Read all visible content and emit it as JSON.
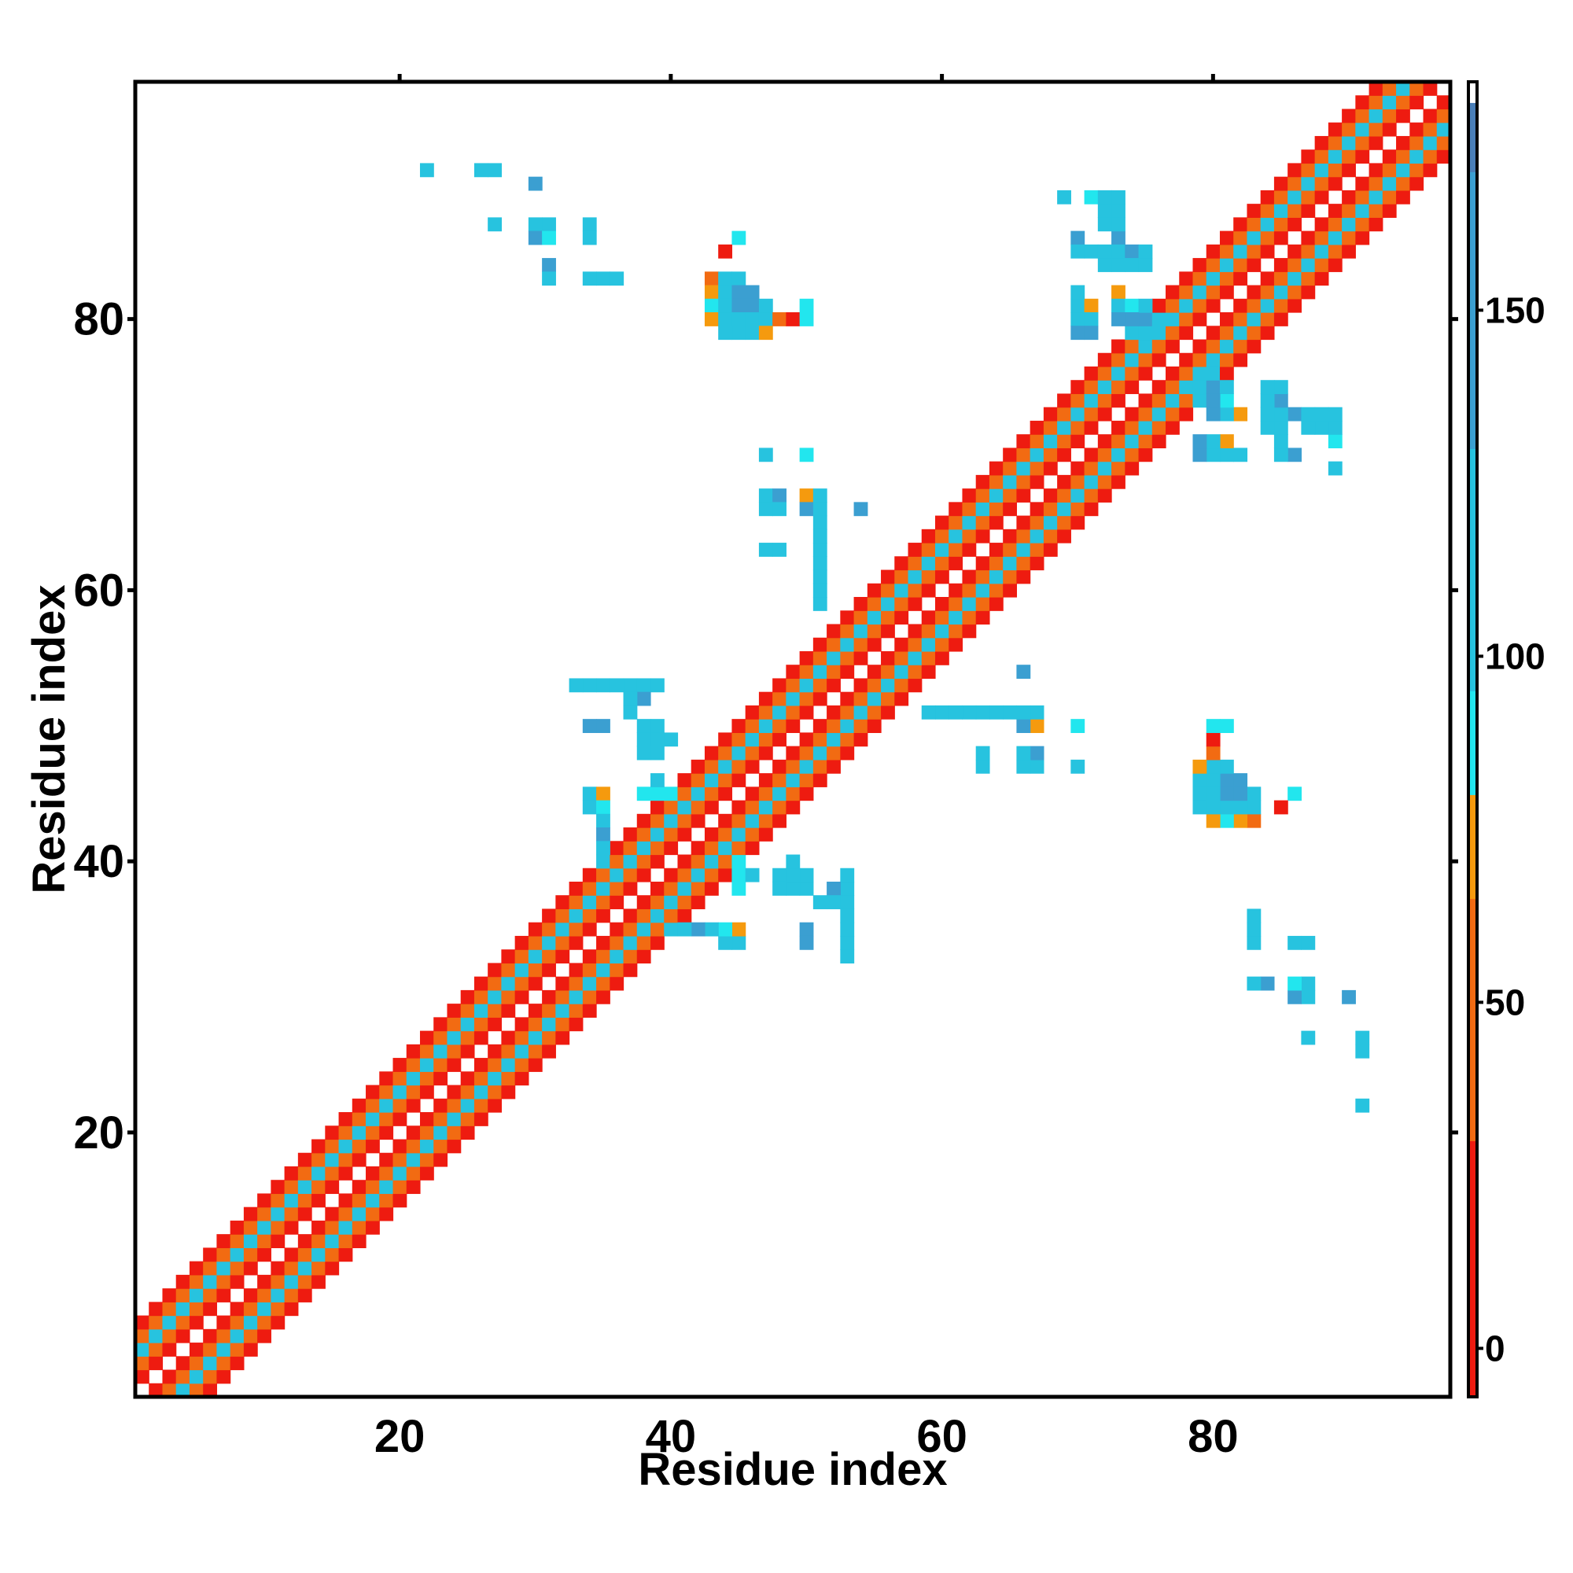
{
  "chart_data": {
    "type": "heatmap",
    "description_matrix": "symmetric residue-residue contact map",
    "xlabel": "Residue index",
    "ylabel": "Residue index",
    "xlim": [
      0.5,
      97.5
    ],
    "ylim": [
      0.5,
      97.5
    ],
    "x_ticks": [
      20,
      40,
      60,
      80
    ],
    "y_ticks": [
      20,
      40,
      60,
      80
    ],
    "x_tick_labels": [
      "20",
      "40",
      "60",
      "80"
    ],
    "y_tick_labels": [
      "20",
      "40",
      "60",
      "80"
    ],
    "colorbar": {
      "range": [
        -7,
        183
      ],
      "ticks": [
        0,
        50,
        100,
        150
      ],
      "tick_labels": [
        "0",
        "50",
        "100",
        "150"
      ],
      "bands": [
        {
          "from": -7,
          "to": 30,
          "color": "#ee1b10"
        },
        {
          "from": 30,
          "to": 65,
          "color": "#f26b12"
        },
        {
          "from": 65,
          "to": 80,
          "color": "#f59a0e"
        },
        {
          "from": 80,
          "to": 95,
          "color": "#22e6ee"
        },
        {
          "from": 95,
          "to": 130,
          "color": "#27c3df"
        },
        {
          "from": 130,
          "to": 170,
          "color": "#3b9fd1"
        },
        {
          "from": 170,
          "to": 180,
          "color": "#4a7fb8"
        },
        {
          "from": 180,
          "to": 183,
          "color": "#ffffff"
        }
      ]
    },
    "colors": {
      "red": "#ee1b10",
      "orange": "#f26b12",
      "amber": "#f59a0e",
      "cyan": "#22e6ee",
      "sky": "#27c3df",
      "blue": "#3b9fd1",
      "steel": "#4a7fb8"
    },
    "diagonal_band": {
      "residues": [
        1,
        97
      ],
      "offsets": [
        {
          "offset": 1,
          "value": 25
        },
        {
          "offset": 2,
          "value": 50
        },
        {
          "offset": 3,
          "value": 100
        },
        {
          "offset": 4,
          "value": 50
        },
        {
          "offset": 5,
          "value": 25
        }
      ]
    },
    "offdiagonal_cells": [
      {
        "i": 22,
        "j": 91,
        "v": 140
      },
      {
        "i": 26,
        "j": 91,
        "v": 120
      },
      {
        "i": 27,
        "j": 91,
        "v": 120
      },
      {
        "i": 30,
        "j": 90,
        "v": 140
      },
      {
        "i": 27,
        "j": 87,
        "v": 120
      },
      {
        "i": 30,
        "j": 87,
        "v": 120
      },
      {
        "i": 31,
        "j": 87,
        "v": 120
      },
      {
        "i": 34,
        "j": 87,
        "v": 120
      },
      {
        "i": 30,
        "j": 86,
        "v": 140
      },
      {
        "i": 31,
        "j": 86,
        "v": 100
      },
      {
        "i": 34,
        "j": 86,
        "v": 100
      },
      {
        "i": 31,
        "j": 84,
        "v": 150
      },
      {
        "i": 31,
        "j": 83,
        "v": 120
      },
      {
        "i": 34,
        "j": 83,
        "v": 100
      },
      {
        "i": 35,
        "j": 83,
        "v": 100
      },
      {
        "i": 36,
        "j": 83,
        "v": 100
      },
      {
        "i": 45,
        "j": 86,
        "v": 90
      },
      {
        "i": 44,
        "j": 85,
        "v": 10
      },
      {
        "i": 43,
        "j": 83,
        "v": 50
      },
      {
        "i": 44,
        "j": 83,
        "v": 100
      },
      {
        "i": 45,
        "j": 83,
        "v": 100
      },
      {
        "i": 43,
        "j": 82,
        "v": 75
      },
      {
        "i": 44,
        "j": 82,
        "v": 130
      },
      {
        "i": 45,
        "j": 82,
        "v": 140
      },
      {
        "i": 46,
        "j": 82,
        "v": 100
      },
      {
        "i": 43,
        "j": 81,
        "v": 75
      },
      {
        "i": 44,
        "j": 81,
        "v": 120
      },
      {
        "i": 45,
        "j": 81,
        "v": 150
      },
      {
        "i": 46,
        "j": 81,
        "v": 140
      },
      {
        "i": 47,
        "j": 81,
        "v": 100
      },
      {
        "i": 50,
        "j": 81,
        "v": 90
      },
      {
        "i": 43,
        "j": 80,
        "v": 90
      },
      {
        "i": 44,
        "j": 80,
        "v": 100
      },
      {
        "i": 45,
        "j": 80,
        "v": 140
      },
      {
        "i": 46,
        "j": 80,
        "v": 140
      },
      {
        "i": 47,
        "j": 80,
        "v": 100
      },
      {
        "i": 48,
        "j": 80,
        "v": 50
      },
      {
        "i": 49,
        "j": 80,
        "v": 10
      },
      {
        "i": 50,
        "j": 80,
        "v": 90
      },
      {
        "i": 45,
        "j": 79,
        "v": 100
      },
      {
        "i": 46,
        "j": 79,
        "v": 120
      },
      {
        "i": 47,
        "j": 79,
        "v": 75
      },
      {
        "i": 69,
        "j": 89,
        "v": 90
      },
      {
        "i": 71,
        "j": 89,
        "v": 90
      },
      {
        "i": 72,
        "j": 89,
        "v": 90
      },
      {
        "i": 72,
        "j": 88,
        "v": 120
      },
      {
        "i": 72,
        "j": 87,
        "v": 120
      },
      {
        "i": 70,
        "j": 86,
        "v": 150
      },
      {
        "i": 73,
        "j": 86,
        "v": 120
      },
      {
        "i": 70,
        "j": 85,
        "v": 120
      },
      {
        "i": 71,
        "j": 85,
        "v": 120
      },
      {
        "i": 72,
        "j": 85,
        "v": 100
      },
      {
        "i": 73,
        "j": 85,
        "v": 100
      },
      {
        "i": 74,
        "j": 85,
        "v": 120
      },
      {
        "i": 75,
        "j": 85,
        "v": 120
      },
      {
        "i": 72,
        "j": 84,
        "v": 120
      },
      {
        "i": 74,
        "j": 84,
        "v": 120
      },
      {
        "i": 73,
        "j": 82,
        "v": 75
      },
      {
        "i": 70,
        "j": 81,
        "v": 100
      },
      {
        "i": 71,
        "j": 81,
        "v": 90
      },
      {
        "i": 73,
        "j": 81,
        "v": 100
      },
      {
        "i": 74,
        "j": 81,
        "v": 90
      },
      {
        "i": 75,
        "j": 81,
        "v": 100
      },
      {
        "i": 70,
        "j": 80,
        "v": 120
      },
      {
        "i": 71,
        "j": 80,
        "v": 100
      },
      {
        "i": 73,
        "j": 80,
        "v": 140
      },
      {
        "i": 74,
        "j": 80,
        "v": 140
      },
      {
        "i": 75,
        "j": 80,
        "v": 150
      },
      {
        "i": 76,
        "j": 80,
        "v": 120
      },
      {
        "i": 70,
        "j": 79,
        "v": 140
      },
      {
        "i": 71,
        "j": 79,
        "v": 50
      },
      {
        "i": 74,
        "j": 79,
        "v": 120
      },
      {
        "i": 75,
        "j": 79,
        "v": 100
      },
      {
        "i": 84,
        "j": 75,
        "v": 120
      },
      {
        "i": 84,
        "j": 74,
        "v": 120
      },
      {
        "i": 85,
        "j": 74,
        "v": 140
      },
      {
        "i": 84,
        "j": 73,
        "v": 120
      },
      {
        "i": 85,
        "j": 73,
        "v": 120
      },
      {
        "i": 86,
        "j": 73,
        "v": 140
      },
      {
        "i": 87,
        "j": 73,
        "v": 120
      },
      {
        "i": 88,
        "j": 73,
        "v": 120
      },
      {
        "i": 89,
        "j": 73,
        "v": 120
      },
      {
        "i": 85,
        "j": 72,
        "v": 120
      },
      {
        "i": 89,
        "j": 72,
        "v": 100
      },
      {
        "i": 79,
        "j": 71,
        "v": 140
      },
      {
        "i": 80,
        "j": 71,
        "v": 120
      },
      {
        "i": 81,
        "j": 71,
        "v": 75
      },
      {
        "i": 79,
        "j": 70,
        "v": 140
      },
      {
        "i": 80,
        "j": 70,
        "v": 120
      },
      {
        "i": 81,
        "j": 70,
        "v": 100
      },
      {
        "i": 82,
        "j": 70,
        "v": 100
      },
      {
        "i": 85,
        "j": 70,
        "v": 120
      },
      {
        "i": 86,
        "j": 70,
        "v": 140
      },
      {
        "i": 89,
        "j": 69,
        "v": 100
      },
      {
        "i": 47,
        "j": 70,
        "v": 120
      },
      {
        "i": 50,
        "j": 70,
        "v": 120
      },
      {
        "i": 47,
        "j": 67,
        "v": 120
      },
      {
        "i": 48,
        "j": 67,
        "v": 120
      },
      {
        "i": 50,
        "j": 67,
        "v": 75
      },
      {
        "i": 51,
        "j": 67,
        "v": 120
      },
      {
        "i": 47,
        "j": 66,
        "v": 120
      },
      {
        "i": 48,
        "j": 66,
        "v": 100
      },
      {
        "i": 50,
        "j": 66,
        "v": 140
      },
      {
        "i": 51,
        "j": 66,
        "v": 120
      },
      {
        "i": 54,
        "j": 66,
        "v": 140
      },
      {
        "i": 51,
        "j": 65,
        "v": 120
      },
      {
        "i": 51,
        "j": 64,
        "v": 120
      },
      {
        "i": 47,
        "j": 63,
        "v": 120
      },
      {
        "i": 48,
        "j": 63,
        "v": 120
      },
      {
        "i": 51,
        "j": 63,
        "v": 120
      },
      {
        "i": 51,
        "j": 62,
        "v": 120
      },
      {
        "i": 51,
        "j": 61,
        "v": 100
      },
      {
        "i": 51,
        "j": 60,
        "v": 100
      },
      {
        "i": 51,
        "j": 59,
        "v": 120
      },
      {
        "i": 34,
        "j": 53,
        "v": 100
      },
      {
        "i": 35,
        "j": 53,
        "v": 100
      },
      {
        "i": 37,
        "j": 53,
        "v": 100
      },
      {
        "i": 38,
        "j": 53,
        "v": 100
      },
      {
        "i": 39,
        "j": 53,
        "v": 100
      },
      {
        "i": 38,
        "j": 52,
        "v": 140
      },
      {
        "i": 35,
        "j": 50,
        "v": 140
      },
      {
        "i": 38,
        "j": 50,
        "v": 140
      },
      {
        "i": 39,
        "j": 50,
        "v": 140
      },
      {
        "i": 38,
        "j": 49,
        "v": 120
      },
      {
        "i": 39,
        "j": 49,
        "v": 120
      },
      {
        "i": 40,
        "j": 49,
        "v": 120
      },
      {
        "i": 34,
        "j": 45,
        "v": 120
      },
      {
        "i": 35,
        "j": 45,
        "v": 75
      },
      {
        "i": 38,
        "j": 45,
        "v": 90
      },
      {
        "i": 39,
        "j": 45,
        "v": 90
      },
      {
        "i": 40,
        "j": 45,
        "v": 90
      },
      {
        "i": 39,
        "j": 46,
        "v": 100
      },
      {
        "i": 34,
        "j": 44,
        "v": 120
      },
      {
        "i": 35,
        "j": 44,
        "v": 90
      },
      {
        "i": 35,
        "j": 43,
        "v": 120
      },
      {
        "i": 35,
        "j": 42,
        "v": 140
      },
      {
        "i": 35,
        "j": 41,
        "v": 120
      },
      {
        "i": 35,
        "j": 40,
        "v": 120
      },
      {
        "i": 48,
        "j": 39,
        "v": 120
      },
      {
        "i": 50,
        "j": 39,
        "v": 100
      },
      {
        "i": 48,
        "j": 38,
        "v": 120
      },
      {
        "i": 49,
        "j": 38,
        "v": 100
      },
      {
        "i": 50,
        "j": 38,
        "v": 120
      },
      {
        "i": 52,
        "j": 38,
        "v": 140
      },
      {
        "i": 51,
        "j": 37,
        "v": 120
      },
      {
        "i": 52,
        "j": 37,
        "v": 120
      },
      {
        "i": 53,
        "j": 37,
        "v": 100
      },
      {
        "i": 53,
        "j": 36,
        "v": 100
      },
      {
        "i": 50,
        "j": 34,
        "v": 140
      },
      {
        "i": 53,
        "j": 34,
        "v": 120
      },
      {
        "i": 53,
        "j": 33,
        "v": 120
      },
      {
        "i": 59,
        "j": 51,
        "v": 100
      },
      {
        "i": 60,
        "j": 51,
        "v": 120
      },
      {
        "i": 61,
        "j": 51,
        "v": 120
      },
      {
        "i": 62,
        "j": 51,
        "v": 120
      },
      {
        "i": 63,
        "j": 51,
        "v": 120
      },
      {
        "i": 64,
        "j": 51,
        "v": 120
      },
      {
        "i": 65,
        "j": 51,
        "v": 120
      },
      {
        "i": 66,
        "j": 51,
        "v": 120
      },
      {
        "i": 67,
        "j": 51,
        "v": 120
      },
      {
        "i": 66,
        "j": 50,
        "v": 140
      },
      {
        "i": 67,
        "j": 50,
        "v": 75
      },
      {
        "i": 70,
        "j": 50,
        "v": 90
      },
      {
        "i": 66,
        "j": 54,
        "v": 140
      },
      {
        "i": 63,
        "j": 48,
        "v": 120
      },
      {
        "i": 66,
        "j": 48,
        "v": 120
      },
      {
        "i": 67,
        "j": 48,
        "v": 140
      },
      {
        "i": 63,
        "j": 47,
        "v": 120
      },
      {
        "i": 66,
        "j": 47,
        "v": 120
      },
      {
        "i": 67,
        "j": 47,
        "v": 120
      },
      {
        "i": 70,
        "j": 47,
        "v": 120
      },
      {
        "i": 80,
        "j": 50,
        "v": 90
      },
      {
        "i": 81,
        "j": 50,
        "v": 90
      },
      {
        "i": 80,
        "j": 49,
        "v": 10
      },
      {
        "i": 80,
        "j": 48,
        "v": 50
      },
      {
        "i": 79,
        "j": 47,
        "v": 75
      },
      {
        "i": 80,
        "j": 47,
        "v": 120
      },
      {
        "i": 81,
        "j": 47,
        "v": 120
      },
      {
        "i": 79,
        "j": 46,
        "v": 120
      },
      {
        "i": 80,
        "j": 46,
        "v": 120
      },
      {
        "i": 81,
        "j": 46,
        "v": 140
      },
      {
        "i": 82,
        "j": 46,
        "v": 150
      },
      {
        "i": 79,
        "j": 45,
        "v": 120
      },
      {
        "i": 80,
        "j": 45,
        "v": 120
      },
      {
        "i": 81,
        "j": 45,
        "v": 140
      },
      {
        "i": 82,
        "j": 45,
        "v": 140
      },
      {
        "i": 83,
        "j": 45,
        "v": 120
      },
      {
        "i": 86,
        "j": 45,
        "v": 90
      },
      {
        "i": 79,
        "j": 44,
        "v": 120
      },
      {
        "i": 80,
        "j": 44,
        "v": 120
      },
      {
        "i": 81,
        "j": 44,
        "v": 120
      },
      {
        "i": 82,
        "j": 44,
        "v": 120
      },
      {
        "i": 83,
        "j": 44,
        "v": 120
      },
      {
        "i": 85,
        "j": 44,
        "v": 10
      },
      {
        "i": 80,
        "j": 43,
        "v": 75
      },
      {
        "i": 81,
        "j": 43,
        "v": 90
      },
      {
        "i": 82,
        "j": 43,
        "v": 75
      },
      {
        "i": 83,
        "j": 43,
        "v": 50
      },
      {
        "i": 83,
        "j": 35,
        "v": 120
      },
      {
        "i": 83,
        "j": 34,
        "v": 120
      },
      {
        "i": 86,
        "j": 34,
        "v": 120
      },
      {
        "i": 87,
        "j": 34,
        "v": 120
      },
      {
        "i": 83,
        "j": 31,
        "v": 120
      },
      {
        "i": 84,
        "j": 31,
        "v": 140
      },
      {
        "i": 86,
        "j": 31,
        "v": 90
      },
      {
        "i": 87,
        "j": 31,
        "v": 120
      },
      {
        "i": 86,
        "j": 30,
        "v": 140
      },
      {
        "i": 87,
        "j": 30,
        "v": 120
      },
      {
        "i": 90,
        "j": 30,
        "v": 140
      },
      {
        "i": 87,
        "j": 27,
        "v": 120
      },
      {
        "i": 91,
        "j": 27,
        "v": 120
      },
      {
        "i": 91,
        "j": 26,
        "v": 120
      },
      {
        "i": 91,
        "j": 22,
        "v": 120
      }
    ]
  }
}
